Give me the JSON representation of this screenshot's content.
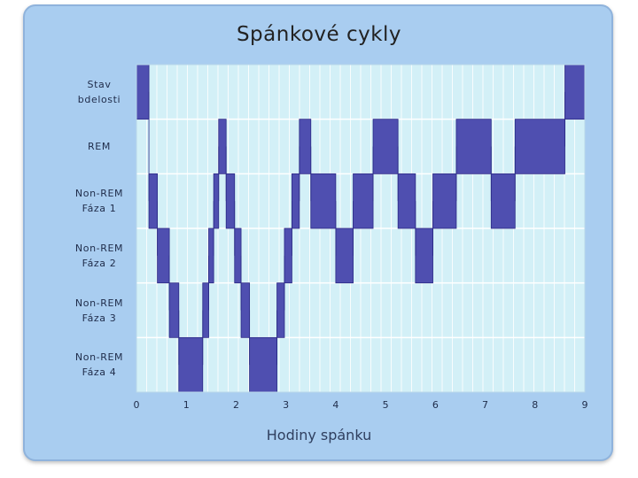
{
  "chart_data": {
    "type": "step",
    "title": "Spánkové cykly",
    "xlabel": "Hodiny spánku",
    "ylabel": "",
    "xlim": [
      0,
      9
    ],
    "xticks": [
      "0",
      "1",
      "2",
      "3",
      "4",
      "5",
      "6",
      "7",
      "8",
      "9"
    ],
    "stages": [
      {
        "lines": [
          "Stav",
          "bdelosti"
        ]
      },
      {
        "lines": [
          "REM"
        ]
      },
      {
        "lines": [
          "Non-REM",
          "Fáza 1"
        ]
      },
      {
        "lines": [
          "Non-REM",
          "Fáza 2"
        ]
      },
      {
        "lines": [
          "Non-REM",
          "Fáza 3"
        ]
      },
      {
        "lines": [
          "Non-REM",
          "Fáza 4"
        ]
      }
    ],
    "segments": [
      {
        "stage": 0,
        "start": 0.0,
        "end": 0.25
      },
      {
        "stage": 2,
        "start": 0.25,
        "end": 0.42
      },
      {
        "stage": 3,
        "start": 0.42,
        "end": 0.66
      },
      {
        "stage": 4,
        "start": 0.66,
        "end": 0.85
      },
      {
        "stage": 5,
        "start": 0.85,
        "end": 1.33
      },
      {
        "stage": 4,
        "start": 1.33,
        "end": 1.45
      },
      {
        "stage": 3,
        "start": 1.45,
        "end": 1.55
      },
      {
        "stage": 2,
        "start": 1.55,
        "end": 1.65
      },
      {
        "stage": 1,
        "start": 1.65,
        "end": 1.8
      },
      {
        "stage": 2,
        "start": 1.8,
        "end": 1.97
      },
      {
        "stage": 3,
        "start": 1.97,
        "end": 2.1
      },
      {
        "stage": 4,
        "start": 2.1,
        "end": 2.27
      },
      {
        "stage": 5,
        "start": 2.27,
        "end": 2.82
      },
      {
        "stage": 4,
        "start": 2.82,
        "end": 2.97
      },
      {
        "stage": 3,
        "start": 2.97,
        "end": 3.12
      },
      {
        "stage": 2,
        "start": 3.12,
        "end": 3.27
      },
      {
        "stage": 1,
        "start": 3.27,
        "end": 3.5
      },
      {
        "stage": 2,
        "start": 3.5,
        "end": 4.0
      },
      {
        "stage": 3,
        "start": 4.0,
        "end": 4.35
      },
      {
        "stage": 2,
        "start": 4.35,
        "end": 4.75
      },
      {
        "stage": 1,
        "start": 4.75,
        "end": 5.25
      },
      {
        "stage": 2,
        "start": 5.25,
        "end": 5.6
      },
      {
        "stage": 3,
        "start": 5.6,
        "end": 5.95
      },
      {
        "stage": 2,
        "start": 5.95,
        "end": 6.42
      },
      {
        "stage": 1,
        "start": 6.42,
        "end": 7.12
      },
      {
        "stage": 2,
        "start": 7.12,
        "end": 7.6
      },
      {
        "stage": 1,
        "start": 7.6,
        "end": 8.6
      },
      {
        "stage": 0,
        "start": 8.6,
        "end": 9.0
      }
    ],
    "colors": {
      "panel": "#a9cdf0",
      "plot": "#d3f0f7",
      "grid": "#ffffff",
      "bar": "#4f4fb0",
      "bar_edge": "#2a2a86"
    },
    "grid": true
  }
}
